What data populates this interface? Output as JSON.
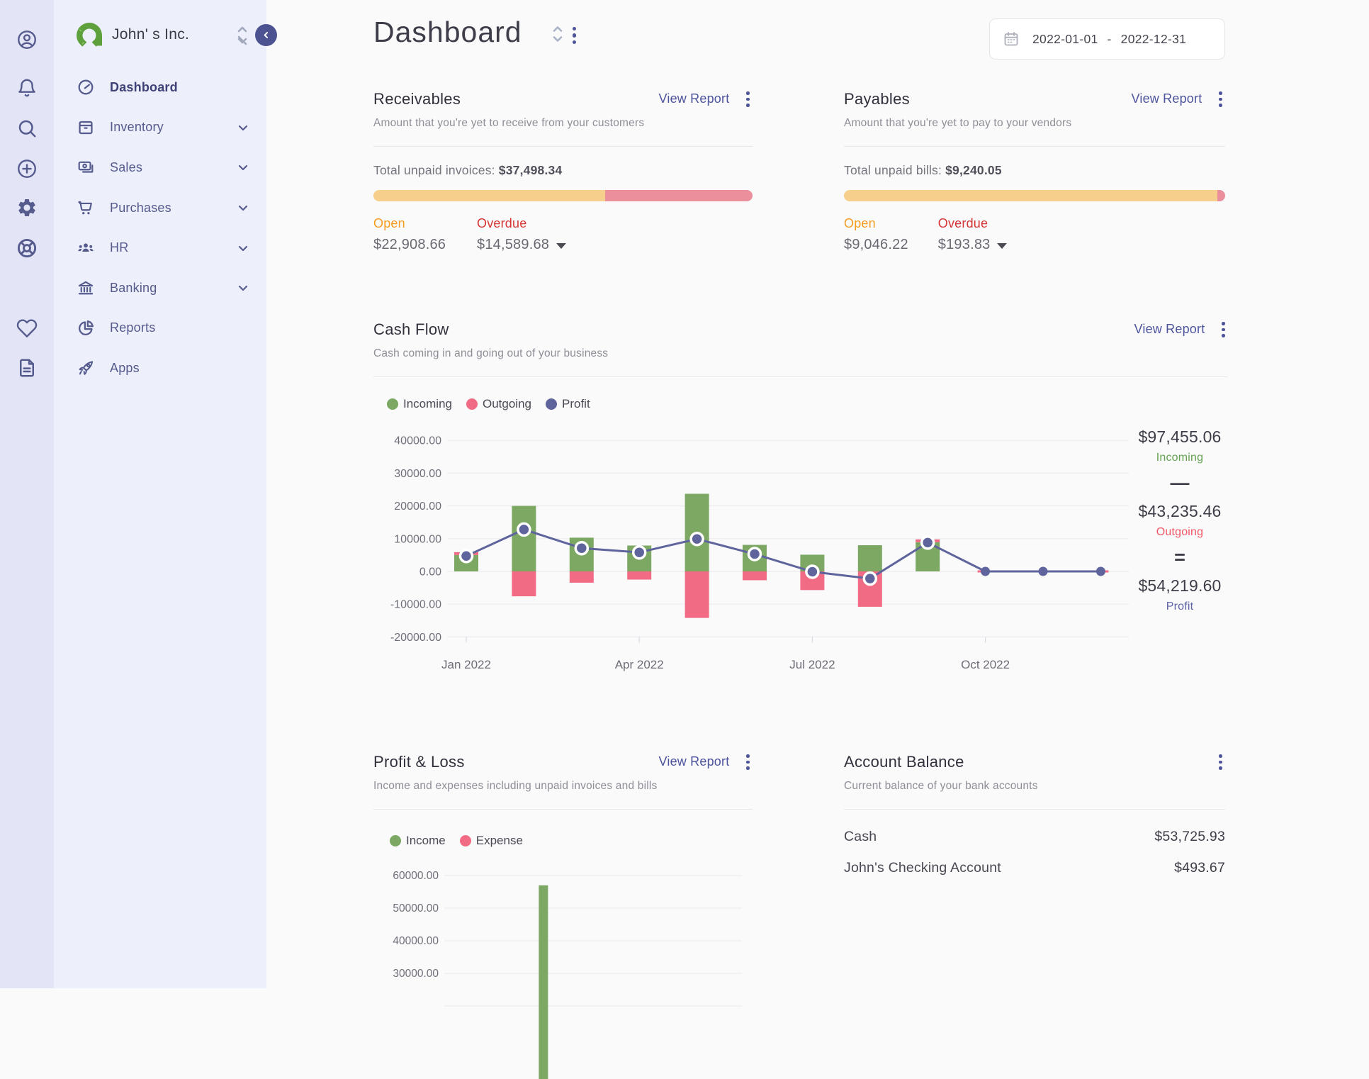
{
  "company": {
    "name": "John' s Inc."
  },
  "header": {
    "title": "Dashboard",
    "date_start": "2022-01-01",
    "date_separator": "-",
    "date_end": "2022-12-31"
  },
  "sidebar": {
    "items": [
      {
        "label": "Dashboard"
      },
      {
        "label": "Inventory"
      },
      {
        "label": "Sales"
      },
      {
        "label": "Purchases"
      },
      {
        "label": "HR"
      },
      {
        "label": "Banking"
      },
      {
        "label": "Reports"
      },
      {
        "label": "Apps"
      }
    ]
  },
  "receivables": {
    "title": "Receivables",
    "action": "View Report",
    "subtitle": "Amount that you're yet to receive from your customers",
    "total_label": "Total unpaid invoices: ",
    "total_value": "$37,498.34",
    "open_label": "Open",
    "open_value": "$22,908.66",
    "overdue_label": "Overdue",
    "overdue_value": "$14,589.68",
    "progress": {
      "open_pct": 61.1,
      "overdue_pct": 38.9
    }
  },
  "payables": {
    "title": "Payables",
    "action": "View Report",
    "subtitle": "Amount that you're yet to pay to your vendors",
    "total_label": "Total unpaid bills: ",
    "total_value": "$9,240.05",
    "open_label": "Open",
    "open_value": "$9,046.22",
    "overdue_label": "Overdue",
    "overdue_value": "$193.83",
    "progress": {
      "open_pct": 97.9,
      "overdue_pct": 2.1
    }
  },
  "cashflow": {
    "title": "Cash Flow",
    "action": "View Report",
    "subtitle": "Cash coming in and going out of your business",
    "legend": [
      {
        "label": "Incoming",
        "color": "#7ca863"
      },
      {
        "label": "Outgoing",
        "color": "#f26b84"
      },
      {
        "label": "Profit",
        "color": "#5f649c"
      }
    ],
    "summary": {
      "incoming_value": "$97,455.06",
      "incoming_label": "Incoming",
      "minus": "—",
      "outgoing_value": "$43,235.46",
      "outgoing_label": "Outgoing",
      "equals": "=",
      "profit_value": "$54,219.60",
      "profit_label": "Profit"
    }
  },
  "profit_loss": {
    "title": "Profit & Loss",
    "action": "View Report",
    "subtitle": "Income and expenses including unpaid invoices and bills",
    "legend": [
      {
        "label": "Income",
        "color": "#7ca863"
      },
      {
        "label": "Expense",
        "color": "#f26b84"
      }
    ]
  },
  "account_balance": {
    "title": "Account Balance",
    "subtitle": "Current balance of your bank accounts",
    "rows": [
      {
        "name": "Cash",
        "balance": "$53,725.93"
      },
      {
        "name": "John's Checking Account",
        "balance": "$493.67"
      }
    ]
  },
  "chart_data": [
    {
      "id": "cashflow",
      "type": "bar+line",
      "x": [
        "Jan 2022",
        "Feb 2022",
        "Mar 2022",
        "Apr 2022",
        "May 2022",
        "Jun 2022",
        "Jul 2022",
        "Aug 2022",
        "Sep 2022",
        "Oct 2022",
        "Nov 2022",
        "Dec 2022"
      ],
      "x_ticks_shown": [
        "Jan 2022",
        "Apr 2022",
        "Jul 2022",
        "Oct 2022"
      ],
      "x_tick_indices": [
        0,
        3,
        6,
        9
      ],
      "ylim": [
        -20000,
        40000
      ],
      "ytick_step": 10000,
      "grid": true,
      "legend_position": "top-left",
      "series": [
        {
          "name": "Incoming",
          "type": "bar",
          "color": "#7ca863",
          "values": [
            5000,
            20000,
            10300,
            7900,
            23700,
            8100,
            5100,
            8000,
            8900,
            0,
            0,
            0
          ]
        },
        {
          "name": "Outgoing",
          "type": "bar",
          "direction": "down",
          "color": "#f26b84",
          "values": [
            300,
            7600,
            3450,
            2500,
            14200,
            2700,
            5700,
            10800,
            400,
            200,
            200,
            200
          ],
          "render": [
            "cap",
            "below",
            "below",
            "below",
            "below",
            "below",
            "below",
            "below",
            "cap",
            "dash",
            "dash",
            "dash"
          ]
        },
        {
          "name": "Profit",
          "type": "line",
          "color": "#5f649c",
          "values": [
            4700,
            12800,
            7100,
            5800,
            9900,
            5300,
            -100,
            -2200,
            8800,
            0,
            0,
            0
          ]
        }
      ]
    },
    {
      "id": "profit_loss",
      "type": "bar",
      "ylabels_visible": [
        "60000.00",
        "50000.00",
        "40000.00",
        "30000.00"
      ],
      "ytick_step": 10000,
      "note": "chart cut off by viewport bottom",
      "series": [
        {
          "name": "Income",
          "color": "#7ca863",
          "visible_bars": [
            {
              "x_fraction": 0.333,
              "value": 57000
            }
          ]
        },
        {
          "name": "Expense",
          "color": "#f26b84",
          "visible_bars": []
        }
      ]
    }
  ]
}
